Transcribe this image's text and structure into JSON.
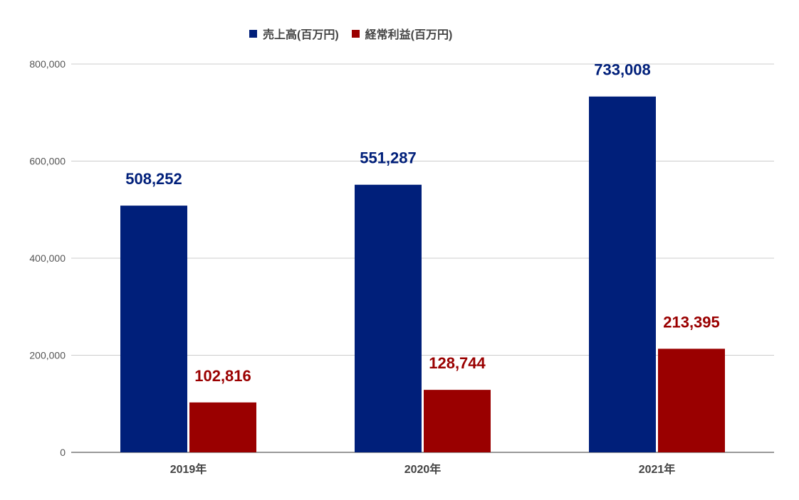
{
  "chart_data": {
    "type": "bar",
    "categories": [
      "2019年",
      "2020年",
      "2021年"
    ],
    "series": [
      {
        "name": "売上高(百万円)",
        "values": [
          508252,
          551287,
          733008
        ],
        "color": "#001f7a",
        "labels": [
          "508,252",
          "551,287",
          "733,008"
        ]
      },
      {
        "name": "経常利益(百万円)",
        "values": [
          102816,
          128744,
          213395
        ],
        "color": "#9a0000",
        "labels": [
          "102,816",
          "128,744",
          "213,395"
        ]
      }
    ],
    "ylim": [
      0,
      800000
    ],
    "yticks": [
      0,
      200000,
      400000,
      600000,
      800000
    ],
    "ytick_labels": [
      "0",
      "200,000",
      "400,000",
      "600,000",
      "800,000"
    ],
    "grid": true,
    "legend": "top-center"
  }
}
